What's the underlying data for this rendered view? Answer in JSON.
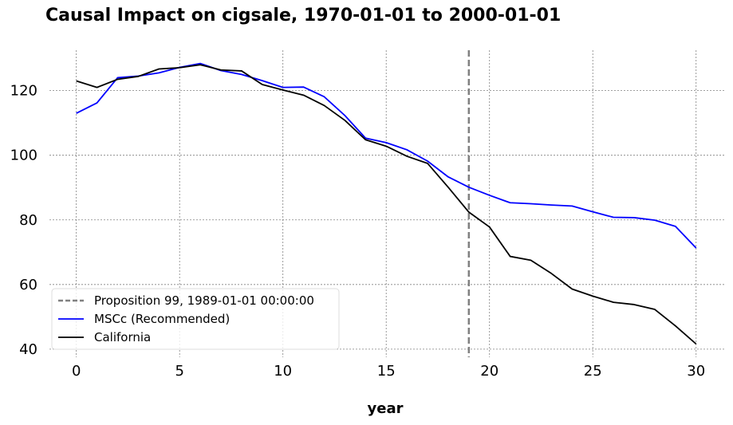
{
  "chart_data": {
    "type": "line",
    "title": "Causal Impact on cigsale, 1970-01-01 to 2000-01-01",
    "xlabel": "year",
    "ylabel": "",
    "xlim": [
      -1.3,
      31.4
    ],
    "ylim": [
      37.5,
      132.5
    ],
    "xticks": [
      0,
      5,
      10,
      15,
      20,
      25,
      30
    ],
    "yticks": [
      40,
      60,
      80,
      100,
      120
    ],
    "grid": true,
    "legend_position": "lower-left",
    "x": [
      0,
      1,
      2,
      3,
      4,
      5,
      6,
      7,
      8,
      9,
      10,
      11,
      12,
      13,
      14,
      15,
      16,
      17,
      18,
      19,
      20,
      21,
      22,
      23,
      24,
      25,
      26,
      27,
      28,
      29,
      30
    ],
    "series": [
      {
        "name": "MSCc (Recommended)",
        "color": "#0000ff",
        "values": [
          113.0,
          116.2,
          124.0,
          124.5,
          125.5,
          127.2,
          128.4,
          126.2,
          125.0,
          123.1,
          121.0,
          121.1,
          118.1,
          112.3,
          105.3,
          103.9,
          101.7,
          98.2,
          93.3,
          90.1,
          87.6,
          85.3,
          85.0,
          84.6,
          84.3,
          82.5,
          80.8,
          80.7,
          79.9,
          78.0,
          71.3
        ]
      },
      {
        "name": "California",
        "color": "#000000",
        "values": [
          123.0,
          121.0,
          123.5,
          124.4,
          126.7,
          127.1,
          128.0,
          126.4,
          126.1,
          121.9,
          120.2,
          118.6,
          115.4,
          110.8,
          104.8,
          102.8,
          99.7,
          97.5,
          90.1,
          82.4,
          77.8,
          68.7,
          67.5,
          63.4,
          58.6,
          56.4,
          54.5,
          53.8,
          52.3,
          47.2,
          41.6
        ]
      }
    ],
    "annotations": [
      {
        "type": "vline",
        "x": 19,
        "label": "Proposition 99, 1989-01-01 00:00:00",
        "color": "#808080",
        "style": "dashed"
      }
    ]
  }
}
